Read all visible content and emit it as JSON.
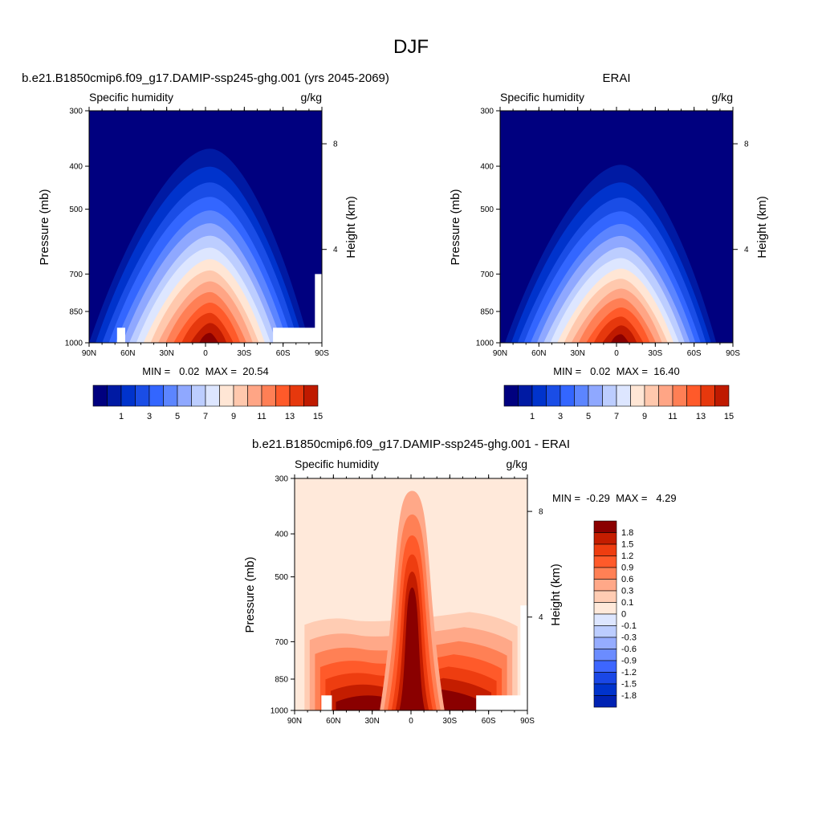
{
  "figure": {
    "title": "DJF"
  },
  "panels": [
    {
      "id": "model",
      "title": "b.e21.B1850cmip6.f09_g17.DAMIP-ssp245-ghg.001 (yrs 2045-2069)",
      "left_label": "Specific humidity",
      "right_label": "g/kg",
      "ylabel": "Pressure (mb)",
      "ylabel_right": "Height (km)",
      "min_max": "MIN =   0.02  MAX =  20.54"
    },
    {
      "id": "obs",
      "title": "ERAI",
      "left_label": "Specific humidity",
      "right_label": "g/kg",
      "ylabel": "Pressure (mb)",
      "ylabel_right": "Height (km)",
      "min_max": "MIN =   0.02  MAX =  16.40"
    },
    {
      "id": "diff",
      "title": "b.e21.B1850cmip6.f09_g17.DAMIP-ssp245-ghg.001 - ERAI",
      "left_label": "Specific humidity",
      "right_label": "g/kg",
      "ylabel": "Pressure (mb)",
      "ylabel_right": "Height (km)",
      "min_max": "MIN =  -0.29  MAX =   4.29"
    }
  ],
  "axes": {
    "x_ticks": [
      "90N",
      "60N",
      "30N",
      "0",
      "30S",
      "60S",
      "90S"
    ],
    "y_ticks": [
      "300",
      "400",
      "500",
      "700",
      "850",
      "1000"
    ],
    "height_ticks": [
      "8",
      "4"
    ]
  },
  "colors": {
    "abs_levels": [
      "#00007f",
      "#001aa3",
      "#0033cc",
      "#1a4de6",
      "#3366ff",
      "#5c85ff",
      "#8fa8ff",
      "#bccdff",
      "#dde6ff",
      "#ffe6d5",
      "#ffc8ad",
      "#ffa585",
      "#ff7f55",
      "#ff5a2a",
      "#e6380d",
      "#bf1a00",
      "#8a0000"
    ],
    "diff_levels": [
      "#000a8c",
      "#0022b3",
      "#0033cc",
      "#1a47e6",
      "#3d66ff",
      "#6b8cff",
      "#95acff",
      "#bccdff",
      "#dde6ff",
      "#ffe9da",
      "#ffccb3",
      "#ffa888",
      "#ff8055",
      "#ff5a2a",
      "#ee3d10",
      "#c41d00",
      "#8a0000"
    ],
    "diff_fill_cap": "#8a0000"
  },
  "colorbars": {
    "abs_labels": [
      "1",
      "3",
      "5",
      "7",
      "9",
      "11",
      "13",
      "15"
    ],
    "diff_labels": [
      "1.8",
      "1.5",
      "1.2",
      "0.9",
      "0.6",
      "0.3",
      "0.1",
      "0",
      "-0.1",
      "-0.3",
      "-0.6",
      "-0.9",
      "-1.2",
      "-1.5",
      "-1.8"
    ]
  },
  "chart_data": [
    {
      "type": "heatmap",
      "title": "b.e21.B1850cmip6.f09_g17.DAMIP-ssp245-ghg.001 (yrs 2045-2069)",
      "subtitle": "Specific humidity",
      "units": "g/kg",
      "xlabel": "",
      "ylabel": "Pressure (mb)",
      "ylabel_right": "Height (km)",
      "x_ticks": [
        "90N",
        "60N",
        "30N",
        "0",
        "30S",
        "60S",
        "90S"
      ],
      "y_ticks": [
        300,
        400,
        500,
        700,
        850,
        1000
      ],
      "y_scale": "log",
      "levels": [
        0.5,
        1,
        2,
        3,
        4,
        5,
        6,
        7,
        8,
        9,
        10,
        11,
        12,
        13,
        14,
        15
      ],
      "colorbar_labels": [
        1,
        3,
        5,
        7,
        9,
        11,
        13,
        15
      ],
      "min": 0.02,
      "max": 20.54
    },
    {
      "type": "heatmap",
      "title": "ERAI",
      "subtitle": "Specific humidity",
      "units": "g/kg",
      "xlabel": "",
      "ylabel": "Pressure (mb)",
      "ylabel_right": "Height (km)",
      "x_ticks": [
        "90N",
        "60N",
        "30N",
        "0",
        "30S",
        "60S",
        "90S"
      ],
      "y_ticks": [
        300,
        400,
        500,
        700,
        850,
        1000
      ],
      "y_scale": "log",
      "levels": [
        0.5,
        1,
        2,
        3,
        4,
        5,
        6,
        7,
        8,
        9,
        10,
        11,
        12,
        13,
        14,
        15
      ],
      "colorbar_labels": [
        1,
        3,
        5,
        7,
        9,
        11,
        13,
        15
      ],
      "min": 0.02,
      "max": 16.4
    },
    {
      "type": "heatmap",
      "title": "b.e21.B1850cmip6.f09_g17.DAMIP-ssp245-ghg.001 - ERAI",
      "subtitle": "Specific humidity",
      "units": "g/kg",
      "xlabel": "",
      "ylabel": "Pressure (mb)",
      "ylabel_right": "Height (km)",
      "x_ticks": [
        "90N",
        "60N",
        "30N",
        "0",
        "30S",
        "60S",
        "90S"
      ],
      "y_ticks": [
        300,
        400,
        500,
        700,
        850,
        1000
      ],
      "y_scale": "log",
      "levels": [
        -1.8,
        -1.5,
        -1.2,
        -0.9,
        -0.6,
        -0.3,
        -0.1,
        0,
        0.1,
        0.3,
        0.6,
        0.9,
        1.2,
        1.5,
        1.8
      ],
      "colorbar_labels": [
        1.8,
        1.5,
        1.2,
        0.9,
        0.6,
        0.3,
        0.1,
        0,
        -0.1,
        -0.3,
        -0.6,
        -0.9,
        -1.2,
        -1.5,
        -1.8
      ],
      "min": -0.29,
      "max": 4.29
    }
  ]
}
